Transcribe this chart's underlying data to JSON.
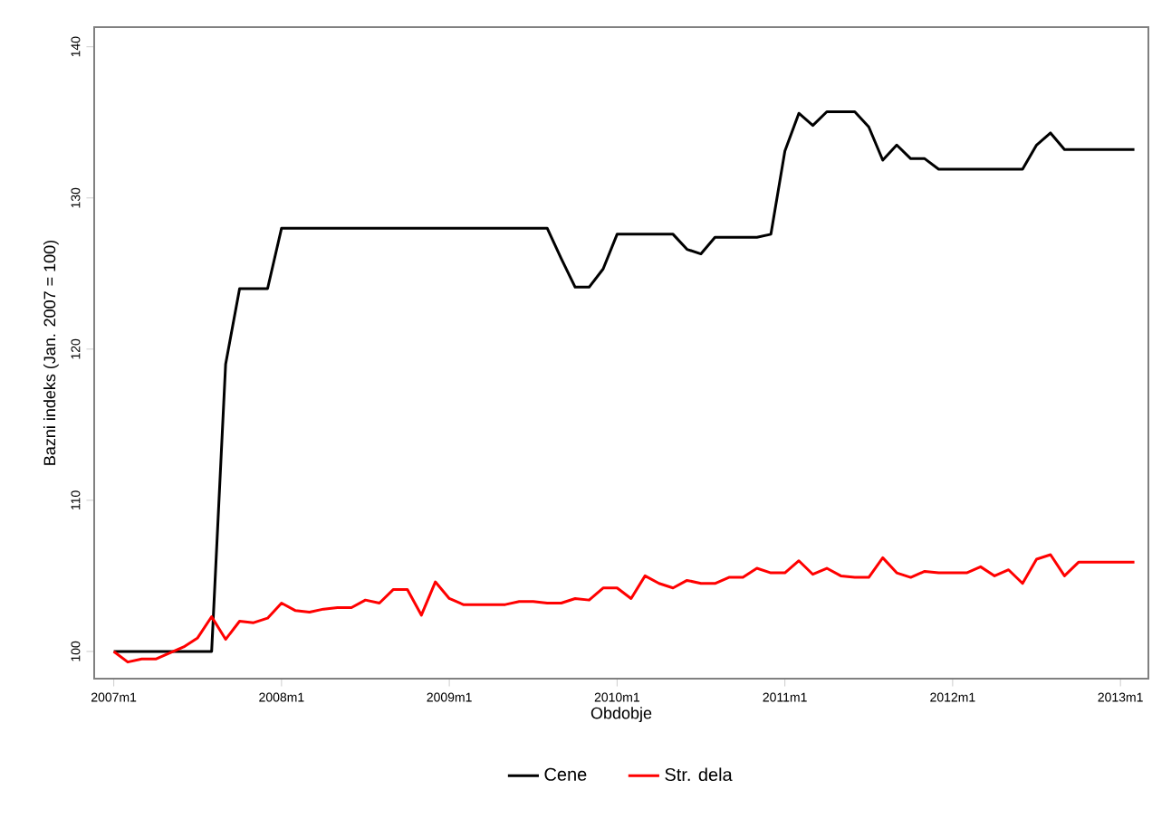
{
  "chart_data": {
    "type": "line",
    "xlabel": "Obdobje",
    "ylabel": "Bazni indeks (Jan. 2007 = 100)",
    "categories": [
      "2007m1",
      null,
      null,
      null,
      null,
      null,
      null,
      null,
      null,
      null,
      null,
      null,
      "2008m1",
      null,
      null,
      null,
      null,
      null,
      null,
      null,
      null,
      null,
      null,
      null,
      "2009m1",
      null,
      null,
      null,
      null,
      null,
      null,
      null,
      null,
      null,
      null,
      null,
      "2010m1",
      null,
      null,
      null,
      null,
      null,
      null,
      null,
      null,
      null,
      null,
      null,
      "2011m1",
      null,
      null,
      null,
      null,
      null,
      null,
      null,
      null,
      null,
      null,
      null,
      "2012m1",
      null,
      null,
      null,
      null,
      null,
      null,
      null,
      null,
      null,
      null,
      null,
      "2013m1",
      null
    ],
    "series": [
      {
        "name": "Cene",
        "color": "#000000",
        "values": [
          100,
          100,
          100,
          100,
          100,
          100,
          100,
          100,
          119,
          124,
          124,
          124,
          128,
          128,
          128,
          128,
          128,
          128,
          128,
          128,
          128,
          128,
          128,
          128,
          128,
          128,
          128,
          128,
          128,
          128,
          128,
          128,
          126,
          124.1,
          124.1,
          125.3,
          127.6,
          127.6,
          127.6,
          127.6,
          127.6,
          126.6,
          126.3,
          127.4,
          127.4,
          127.4,
          127.4,
          127.6,
          133.1,
          135.6,
          134.8,
          135.7,
          135.7,
          135.7,
          134.7,
          132.5,
          133.5,
          132.6,
          132.6,
          131.9,
          131.9,
          131.9,
          131.9,
          131.9,
          131.9,
          131.9,
          133.5,
          134.3,
          133.2,
          133.2,
          133.2,
          133.2,
          133.2,
          133.2
        ]
      },
      {
        "name": "Str. dela",
        "color": "#ff0000",
        "values": [
          100,
          99.3,
          99.5,
          99.5,
          99.9,
          100.3,
          100.9,
          102.3,
          100.8,
          102,
          101.9,
          102.2,
          103.2,
          102.7,
          102.6,
          102.8,
          102.9,
          102.9,
          103.4,
          103.2,
          104.1,
          104.1,
          102.4,
          104.6,
          103.5,
          103.1,
          103.1,
          103.1,
          103.1,
          103.3,
          103.3,
          103.2,
          103.2,
          103.5,
          103.4,
          104.2,
          104.2,
          103.5,
          105,
          104.5,
          104.2,
          104.7,
          104.5,
          104.5,
          104.9,
          104.9,
          105.5,
          105.2,
          105.2,
          106,
          105.1,
          105.5,
          105,
          104.9,
          104.9,
          106.2,
          105.2,
          104.9,
          105.3,
          105.2,
          105.2,
          105.2,
          105.6,
          105,
          105.4,
          104.5,
          106.1,
          106.4,
          105,
          105.9,
          105.9,
          105.9,
          105.9,
          105.9
        ]
      }
    ],
    "ylim": [
      98.2,
      141.3
    ],
    "yticks": [
      100,
      110,
      120,
      130,
      140
    ],
    "legend": "bottom"
  }
}
